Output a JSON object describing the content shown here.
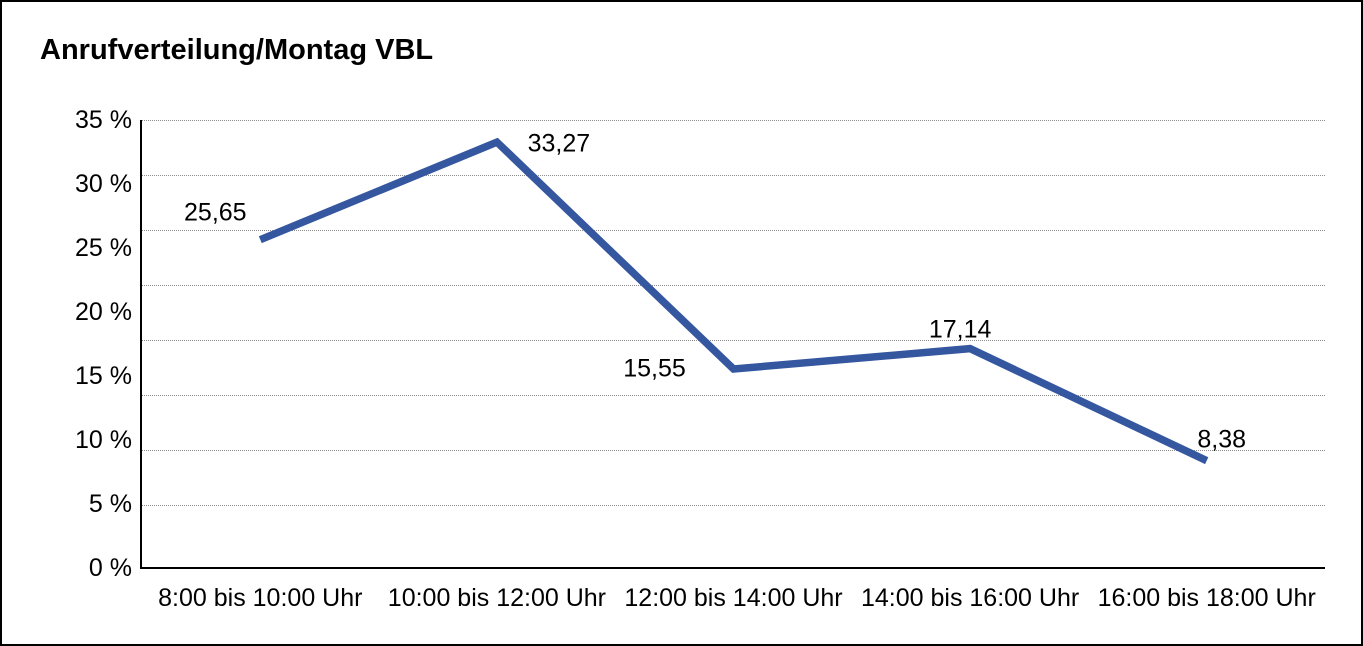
{
  "title": "Anrufverteilung/Montag VBL",
  "chart_data": {
    "type": "line",
    "title": "Anrufverteilung/Montag VBL",
    "categories": [
      "8:00 bis 10:00 Uhr",
      "10:00 bis 12:00 Uhr",
      "12:00 bis 14:00 Uhr",
      "14:00 bis 16:00 Uhr",
      "16:00 bis 18:00 Uhr"
    ],
    "values": [
      25.65,
      33.27,
      15.55,
      17.14,
      8.38
    ],
    "point_labels": [
      "25,65",
      "33,27",
      "15,55",
      "17,14",
      "8,38"
    ],
    "y_tick_labels": [
      "35 %",
      "30 %",
      "25 %",
      "20 %",
      "15 %",
      "10 %",
      "5 %",
      "0 %"
    ],
    "y_tick_values": [
      35,
      30,
      25,
      20,
      15,
      10,
      5,
      0
    ],
    "ylim": [
      0,
      35
    ],
    "xlabel": "",
    "ylabel": "",
    "grid": true,
    "legend": "none",
    "line_color": "#35579F",
    "grid_color": "#8c8c8c",
    "axis_color": "#000000"
  }
}
